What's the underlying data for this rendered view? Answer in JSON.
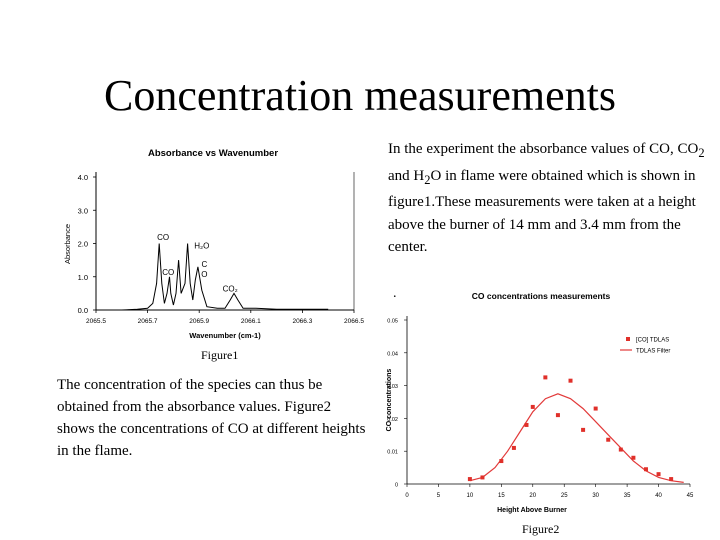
{
  "title": "Concentration measurements",
  "paragraph_right_parts": {
    "p1": "In the experiment the absorbance values  of CO, CO",
    "sub1": "2",
    "p2": " and H",
    "sub2": "2",
    "p3": "O in flame were obtained which is shown in figure1.These measurements were taken at a height above the burner of 14 mm and 3.4 mm from the center."
  },
  "paragraph_left": "The concentration of the species can thus be obtained from the absorbance values. Figure2 shows the concentrations of CO at different heights in the flame.",
  "stray_dot": ".",
  "figure1_caption": "Figure1",
  "figure2_caption": "Figure2",
  "chart_data": [
    {
      "type": "line",
      "title": "Absorbance vs Wavenumber",
      "xlabel": "Wavenumber (cm-1)",
      "ylabel": "Absorbance",
      "xlim": [
        2065.5,
        2066.5
      ],
      "ylim": [
        0.0,
        4.0
      ],
      "x_ticks": [
        "2065.5",
        "2065.7",
        "2065.9",
        "2066.1",
        "2066.3",
        "2066.5"
      ],
      "y_ticks": [
        "0.0",
        "1.0",
        "2.0",
        "3.0",
        "4.0"
      ],
      "annotations": [
        {
          "text": "CO",
          "x": 2065.76,
          "y": 2.1
        },
        {
          "text": "H₂O",
          "x": 2065.91,
          "y": 1.85
        },
        {
          "text": "CO",
          "x": 2065.78,
          "y": 1.05
        },
        {
          "text": "C",
          "x": 2065.92,
          "y": 1.3
        },
        {
          "text": "O",
          "x": 2065.92,
          "y": 1.0
        },
        {
          "text": "CO₂",
          "x": 2066.02,
          "y": 0.55
        }
      ],
      "x": [
        2065.6,
        2065.66,
        2065.7,
        2065.72,
        2065.735,
        2065.745,
        2065.755,
        2065.765,
        2065.775,
        2065.785,
        2065.79,
        2065.8,
        2065.81,
        2065.82,
        2065.83,
        2065.845,
        2065.855,
        2065.865,
        2065.875,
        2065.885,
        2065.895,
        2065.91,
        2065.93,
        2065.97,
        2066.0,
        2066.02,
        2066.035,
        2066.05,
        2066.07,
        2066.12,
        2066.2,
        2066.3,
        2066.4
      ],
      "series": [
        {
          "values": [
            0.0,
            0.02,
            0.05,
            0.2,
            0.8,
            2.0,
            0.8,
            0.2,
            0.5,
            1.0,
            0.5,
            0.15,
            0.5,
            1.5,
            0.5,
            0.8,
            2.0,
            0.8,
            0.3,
            0.9,
            1.3,
            0.6,
            0.1,
            0.05,
            0.05,
            0.3,
            0.5,
            0.3,
            0.05,
            0.05,
            0.02,
            0.02,
            0.02
          ]
        }
      ]
    },
    {
      "type": "scatter",
      "title": "CO concentrations measurements",
      "xlabel": "Height Above Burner",
      "ylabel": "CO concentrations",
      "xlim": [
        0,
        45
      ],
      "ylim": [
        0,
        0.05
      ],
      "x_ticks": [
        "0",
        "5",
        "10",
        "15",
        "20",
        "25",
        "30",
        "35",
        "40",
        "45"
      ],
      "y_ticks": [
        "0",
        "0.01",
        "0.02",
        "0.03",
        "0.04",
        "0.05"
      ],
      "legend": {
        "placement": "top-right",
        "entries": [
          "[CO] TDLAS",
          "TDLAS Filter"
        ]
      },
      "series": [
        {
          "name": "[CO] TDLAS",
          "x": [
            10,
            12,
            15,
            17,
            19,
            20,
            22,
            24,
            26,
            28,
            30,
            32,
            34,
            36,
            38,
            40,
            42
          ],
          "values": [
            0.0015,
            0.002,
            0.007,
            0.011,
            0.018,
            0.0235,
            0.0325,
            0.021,
            0.0315,
            0.0165,
            0.023,
            0.0135,
            0.0105,
            0.008,
            0.0045,
            0.003,
            0.0015
          ]
        },
        {
          "name": "TDLAS Filter",
          "x": [
            10,
            12,
            14,
            16,
            18,
            20,
            22,
            24,
            26,
            28,
            30,
            32,
            34,
            36,
            38,
            40,
            42,
            44
          ],
          "values": [
            0.001,
            0.002,
            0.005,
            0.01,
            0.016,
            0.022,
            0.026,
            0.0275,
            0.026,
            0.023,
            0.019,
            0.015,
            0.011,
            0.007,
            0.004,
            0.002,
            0.001,
            0.0005
          ]
        }
      ]
    }
  ]
}
